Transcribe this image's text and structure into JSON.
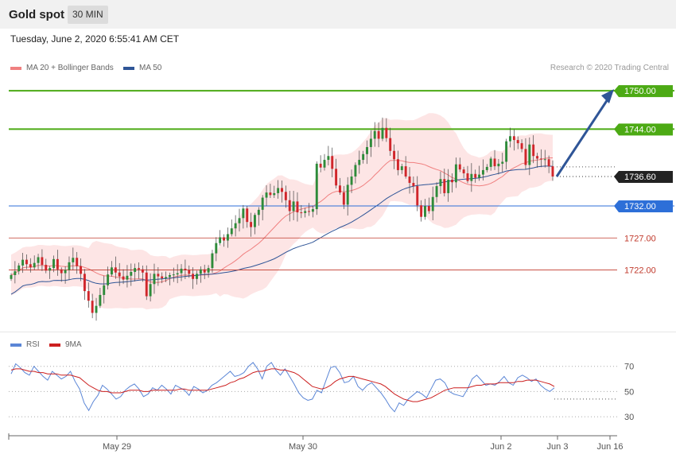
{
  "header": {
    "title": "Gold spot",
    "timeframe": "30 MIN",
    "datetime": "Tuesday, June 2, 2020 6:55:41 AM CET"
  },
  "legend": {
    "ma20_label": "MA 20 + Bollinger Bands",
    "ma50_label": "MA 50",
    "credit": "Research © 2020 Trading Central"
  },
  "rsi_legend": {
    "rsi_label": "RSI",
    "ma_label": "9MA"
  },
  "colors": {
    "ma20": "#f08080",
    "ma50": "#2f5597",
    "band": "#fde0e0",
    "bull": "#2e8b3a",
    "bear": "#d0262b",
    "green_level": "#4caa14",
    "blue_level": "#2d6fd8",
    "red_level": "#c0392b",
    "rsi": "#5b86d6",
    "rsi_ma": "#cc1f1f",
    "arrow": "#2f5597"
  },
  "chart_data": [
    {
      "type": "candlestick",
      "title": "Gold spot",
      "x_tick_labels": [
        "May 29",
        "May 30",
        "Jun 2",
        "Jun 3",
        "Jun 16"
      ],
      "ylim": [
        1713,
        1752
      ],
      "levels": [
        {
          "value": 1750.0,
          "label": "1750.00",
          "kind": "resistance"
        },
        {
          "value": 1744.0,
          "label": "1744.00",
          "kind": "resistance"
        },
        {
          "value": 1736.6,
          "label": "1736.60",
          "kind": "last"
        },
        {
          "value": 1732.0,
          "label": "1732.00",
          "kind": "pivot"
        },
        {
          "value": 1727.0,
          "label": "1727.00",
          "kind": "support"
        },
        {
          "value": 1722.0,
          "label": "1722.00",
          "kind": "support"
        }
      ],
      "series_close": [
        1721.2,
        1721.8,
        1722.7,
        1723.6,
        1722.9,
        1722.4,
        1723.1,
        1724.0,
        1722.8,
        1721.9,
        1722.3,
        1723.7,
        1722.1,
        1721.5,
        1722.0,
        1723.2,
        1723.9,
        1722.6,
        1721.4,
        1718.7,
        1717.2,
        1715.3,
        1716.4,
        1718.1,
        1719.6,
        1721.3,
        1722.4,
        1721.6,
        1721.0,
        1720.5,
        1721.1,
        1721.7,
        1722.3,
        1722.1,
        1721.6,
        1717.9,
        1719.8,
        1721.4,
        1721.0,
        1720.7,
        1720.9,
        1721.2,
        1721.3,
        1721.5,
        1722.2,
        1722.0,
        1721.4,
        1720.6,
        1721.4,
        1722.1,
        1721.6,
        1722.3,
        1724.6,
        1726.2,
        1727.1,
        1726.6,
        1727.6,
        1728.5,
        1729.3,
        1730.1,
        1731.6,
        1729.5,
        1728.7,
        1730.6,
        1731.4,
        1733.3,
        1734.1,
        1733.7,
        1734.0,
        1734.8,
        1734.2,
        1732.9,
        1731.2,
        1732.7,
        1731.0,
        1730.9,
        1731.2,
        1731.1,
        1731.5,
        1738.6,
        1738.0,
        1739.2,
        1739.8,
        1737.8,
        1735.2,
        1734.1,
        1732.2,
        1735.3,
        1736.6,
        1738.4,
        1739.2,
        1740.1,
        1741.2,
        1742.5,
        1743.7,
        1742.5,
        1744.2,
        1742.6,
        1740.6,
        1739.3,
        1737.6,
        1738.2,
        1736.6,
        1735.6,
        1735.1,
        1732.1,
        1730.3,
        1732.0,
        1731.2,
        1733.4,
        1735.1,
        1736.2,
        1734.0,
        1736.1,
        1735.7,
        1738.5,
        1737.7,
        1737.1,
        1735.9,
        1737.0,
        1736.4,
        1736.9,
        1737.6,
        1738.1,
        1739.4,
        1738.2,
        1738.6,
        1738.9,
        1742.1,
        1742.9,
        1742.3,
        1741.8,
        1740.9,
        1738.4,
        1741.6,
        1739.8,
        1739.4,
        1739.3,
        1739.3,
        1738.2,
        1736.6
      ]
    },
    {
      "type": "line",
      "title": "RSI",
      "y_tick_labels": [
        "70",
        "50",
        "30"
      ],
      "ylim": [
        20,
        78
      ],
      "series": [
        {
          "name": "RSI",
          "values": [
            64,
            72,
            69,
            65,
            63,
            70,
            66,
            62,
            59,
            66,
            63,
            60,
            62,
            66,
            58,
            52,
            41,
            35,
            42,
            47,
            55,
            52,
            48,
            44,
            46,
            51,
            54,
            56,
            52,
            46,
            48,
            53,
            51,
            55,
            52,
            48,
            55,
            53,
            51,
            47,
            54,
            52,
            49,
            51,
            55,
            57,
            60,
            63,
            66,
            62,
            63,
            65,
            70,
            73,
            68,
            60,
            70,
            73,
            67,
            63,
            68,
            62,
            56,
            49,
            45,
            43,
            44,
            51,
            49,
            59,
            69,
            70,
            65,
            57,
            58,
            62,
            54,
            51,
            55,
            57,
            53,
            49,
            44,
            38,
            34,
            41,
            39,
            44,
            47,
            50,
            48,
            45,
            52,
            59,
            60,
            57,
            50,
            48,
            47,
            46,
            52,
            60,
            63,
            59,
            55,
            56,
            55,
            58,
            62,
            57,
            55,
            61,
            63,
            61,
            58,
            60,
            55,
            52,
            50,
            53
          ]
        },
        {
          "name": "9MA",
          "values": [
            67,
            68,
            68,
            67,
            66,
            66,
            65,
            65,
            64,
            64,
            64,
            63,
            63,
            63,
            62,
            61,
            58,
            55,
            53,
            51,
            50,
            50,
            49,
            49,
            49,
            50,
            51,
            51,
            51,
            50,
            50,
            51,
            51,
            51,
            51,
            51,
            51,
            52,
            52,
            51,
            51,
            51,
            51,
            51,
            52,
            53,
            54,
            55,
            57,
            58,
            60,
            61,
            63,
            65,
            66,
            66,
            67,
            68,
            68,
            67,
            67,
            66,
            65,
            63,
            60,
            57,
            54,
            53,
            52,
            53,
            55,
            58,
            60,
            61,
            62,
            62,
            61,
            60,
            59,
            58,
            57,
            56,
            54,
            51,
            48,
            46,
            44,
            43,
            42,
            42,
            43,
            44,
            45,
            47,
            49,
            51,
            52,
            53,
            53,
            53,
            53,
            54,
            55,
            55,
            56,
            56,
            56,
            57,
            57,
            57,
            57,
            58,
            58,
            59,
            59,
            59,
            58,
            57,
            56,
            54
          ]
        }
      ]
    }
  ]
}
